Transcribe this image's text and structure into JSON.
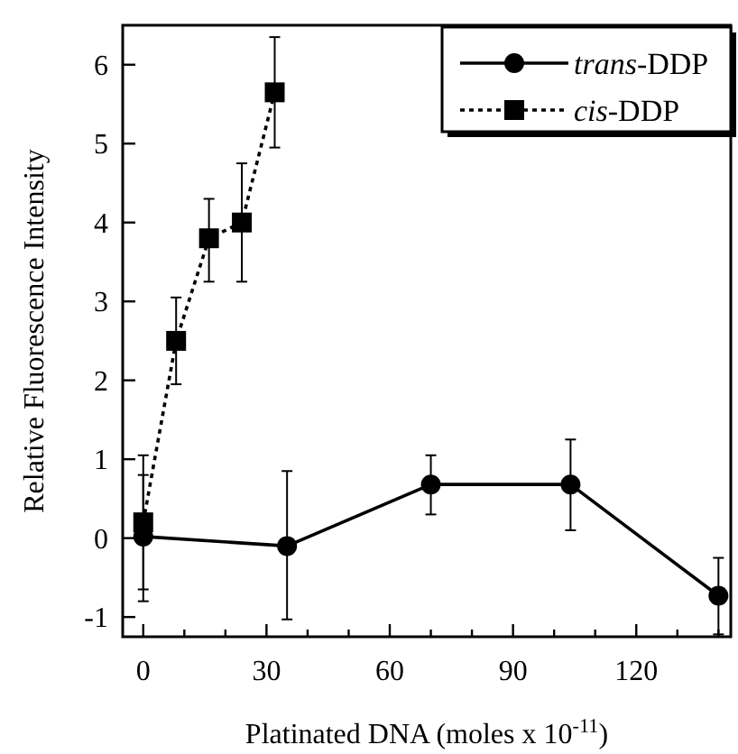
{
  "chart_data": {
    "type": "line",
    "xlabel": "Platinated DNA (moles x 10$^{-11}$)",
    "ylabel": "Relative Fluorescence Intensity",
    "xlim": [
      -5,
      143
    ],
    "ylim": [
      -1.25,
      6.5
    ],
    "xticks": [
      0,
      {
        "value": 10,
        "label": null
      },
      {
        "value": 20,
        "label": null
      },
      30,
      {
        "value": 40,
        "label": null
      },
      {
        "value": 50,
        "label": null
      },
      60,
      {
        "value": 70,
        "label": null
      },
      {
        "value": 80,
        "label": null
      },
      90,
      {
        "value": 100,
        "label": null
      },
      {
        "value": 110,
        "label": null
      },
      120,
      {
        "value": 130,
        "label": null
      },
      {
        "value": 140,
        "label": null
      }
    ],
    "yticks": [
      -1,
      0,
      1,
      2,
      3,
      4,
      5,
      6
    ],
    "grid": false,
    "legend": "top right",
    "series": [
      {
        "name": "trans-DDP",
        "color": "#000000",
        "marker": "circle",
        "line_style": "solid",
        "x": [
          0,
          35,
          70,
          104,
          140
        ],
        "values": [
          0.02,
          -0.1,
          0.68,
          0.68,
          -0.73
        ],
        "errors": [
          [
            -0.8,
            0.8
          ],
          [
            -1.03,
            0.85
          ],
          [
            0.3,
            1.05
          ],
          [
            0.1,
            1.25
          ],
          [
            -1.22,
            -0.25
          ]
        ]
      },
      {
        "name": "cis-DDP",
        "color": "#000000",
        "marker": "square",
        "line_style": "dotted",
        "x": [
          0,
          8,
          16,
          24,
          32
        ],
        "values": [
          0.2,
          2.5,
          3.8,
          4.0,
          5.65
        ],
        "errors": [
          [
            -0.65,
            1.05
          ],
          [
            1.95,
            3.05
          ],
          [
            3.25,
            4.3
          ],
          [
            3.25,
            4.75
          ],
          [
            4.95,
            6.35
          ]
        ]
      }
    ]
  }
}
